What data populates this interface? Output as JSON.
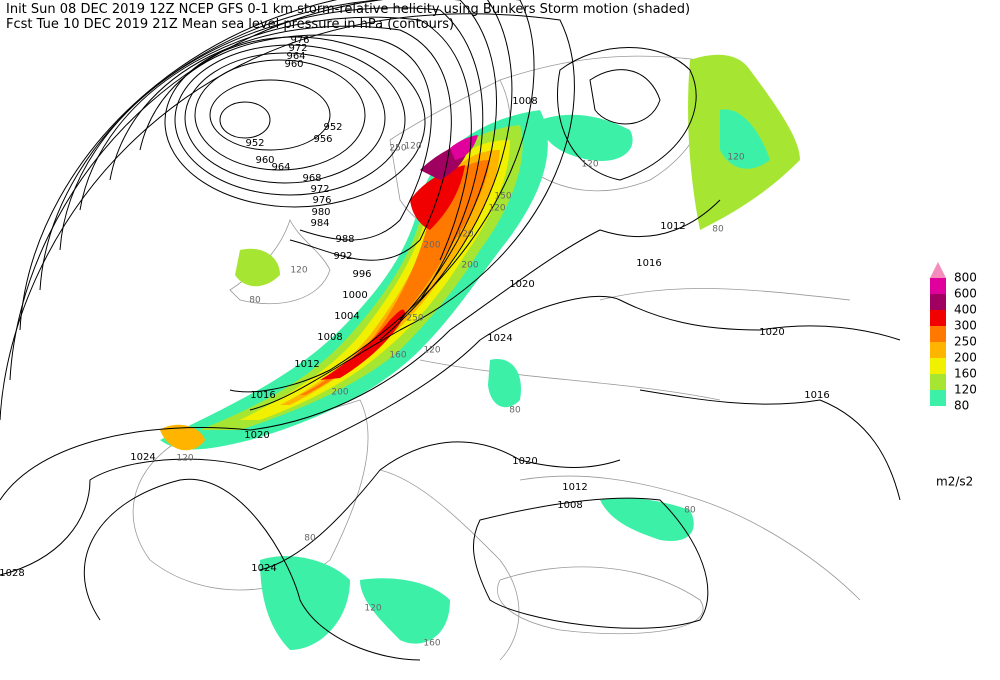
{
  "header": {
    "line1": "Init  Sun 08 DEC 2019 12Z  NCEP GFS 0-1 km storm-relative helicity using Bunkers Storm motion (shaded)",
    "line2": "Fcst Tue 10 DEC 2019 21Z  Mean sea level pressure in hPa (contours)"
  },
  "legend": {
    "unit": "m2/s2",
    "levels": [
      {
        "label": "800",
        "color": "#f48cbc"
      },
      {
        "label": "600",
        "color": "#e0009c"
      },
      {
        "label": "400",
        "color": "#a00060"
      },
      {
        "label": "300",
        "color": "#f00000"
      },
      {
        "label": "250",
        "color": "#ff7800"
      },
      {
        "label": "200",
        "color": "#ffb400"
      },
      {
        "label": "160",
        "color": "#f0f000"
      },
      {
        "label": "120",
        "color": "#a6e632"
      },
      {
        "label": "80",
        "color": "#3cf0a8"
      }
    ]
  },
  "contour_labels": [
    "976",
    "972",
    "964",
    "960",
    "952",
    "952",
    "956",
    "960",
    "964",
    "968",
    "972",
    "976",
    "980",
    "984",
    "988",
    "992",
    "996",
    "1000",
    "1004",
    "1008",
    "1012",
    "1016",
    "1020",
    "1024",
    "1028",
    "1024",
    "1008",
    "1012",
    "1016",
    "1020",
    "1024",
    "1020",
    "1016",
    "1020",
    "1012",
    "1008"
  ],
  "helicity_labels": [
    "250",
    "120",
    "150",
    "120",
    "200",
    "120",
    "200",
    "250",
    "160",
    "120",
    "200",
    "120",
    "80",
    "120",
    "120",
    "80",
    "120",
    "160",
    "80",
    "80",
    "120",
    "80"
  ]
}
